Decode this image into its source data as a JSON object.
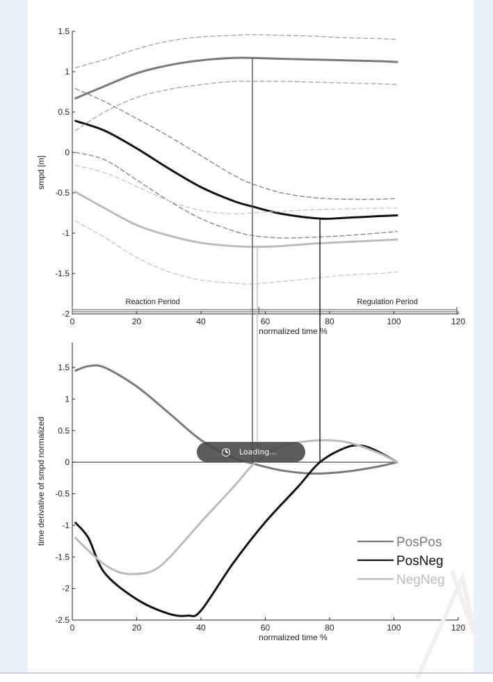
{
  "chart_data": [
    {
      "type": "line",
      "xlabel": "normalized time %",
      "ylabel": "smpd [m]",
      "xlim": [
        0,
        120
      ],
      "ylim": [
        -2,
        1.5
      ],
      "xticks": [
        0,
        20,
        40,
        60,
        80,
        100,
        120
      ],
      "yticks": [
        1.5,
        1,
        0.5,
        0,
        -0.5,
        -1,
        -1.5,
        -2
      ],
      "ytick_labels": [
        "1.5",
        "1",
        "0.5",
        "0",
        "-0.5",
        "-1",
        "-1.5",
        "-2"
      ],
      "xtick_labels": [
        "0",
        "20",
        "40",
        "60",
        "80",
        "100",
        "120"
      ],
      "period_labels": [
        "Reaction Period",
        "Regulation Period"
      ],
      "series": [
        {
          "color": "#7a7a7a",
          "style": "solid",
          "x": [
            1,
            10,
            20,
            30,
            40,
            50,
            56,
            65,
            75,
            85,
            95,
            101
          ],
          "y": [
            0.67,
            0.82,
            0.98,
            1.08,
            1.14,
            1.17,
            1.17,
            1.16,
            1.15,
            1.14,
            1.13,
            1.12
          ]
        },
        {
          "color": "#111111",
          "style": "solid",
          "x": [
            1,
            10,
            20,
            30,
            40,
            50,
            56,
            65,
            77,
            85,
            95,
            101
          ],
          "y": [
            0.39,
            0.27,
            0.05,
            -0.2,
            -0.43,
            -0.6,
            -0.67,
            -0.76,
            -0.82,
            -0.81,
            -0.79,
            -0.78
          ]
        },
        {
          "color": "#bbbbbb",
          "style": "solid",
          "x": [
            1,
            10,
            20,
            30,
            40,
            50,
            57,
            65,
            75,
            85,
            95,
            101
          ],
          "y": [
            -0.49,
            -0.69,
            -0.9,
            -1.03,
            -1.12,
            -1.16,
            -1.17,
            -1.16,
            -1.13,
            -1.11,
            -1.09,
            -1.08
          ]
        },
        {
          "color": "#a8a8a8",
          "style": "dashed",
          "x": [
            1,
            10,
            20,
            30,
            40,
            50,
            56,
            65,
            75,
            85,
            95,
            101
          ],
          "y": [
            1.05,
            1.15,
            1.28,
            1.38,
            1.43,
            1.45,
            1.46,
            1.45,
            1.44,
            1.42,
            1.41,
            1.4
          ]
        },
        {
          "color": "#a8a8a8",
          "style": "dashed",
          "x": [
            1,
            10,
            20,
            30,
            40,
            50,
            56,
            65,
            75,
            85,
            95,
            101
          ],
          "y": [
            0.27,
            0.5,
            0.68,
            0.78,
            0.84,
            0.88,
            0.88,
            0.88,
            0.87,
            0.86,
            0.85,
            0.84
          ]
        },
        {
          "color": "#888888",
          "style": "dashed",
          "x": [
            1,
            10,
            20,
            30,
            40,
            50,
            56,
            65,
            75,
            85,
            95,
            101
          ],
          "y": [
            0.79,
            0.63,
            0.42,
            0.2,
            -0.04,
            -0.28,
            -0.39,
            -0.5,
            -0.56,
            -0.58,
            -0.58,
            -0.57
          ]
        },
        {
          "color": "#888888",
          "style": "dashed",
          "x": [
            1,
            10,
            20,
            30,
            40,
            50,
            56,
            65,
            75,
            85,
            95,
            101
          ],
          "y": [
            0.0,
            -0.09,
            -0.34,
            -0.6,
            -0.82,
            -0.97,
            -1.03,
            -1.06,
            -1.05,
            -1.03,
            -1.0,
            -0.98
          ]
        },
        {
          "color": "#c8c8c8",
          "style": "dashed",
          "x": [
            1,
            10,
            20,
            30,
            40,
            50,
            56,
            65,
            75,
            85,
            95,
            101
          ],
          "y": [
            -0.16,
            -0.25,
            -0.42,
            -0.6,
            -0.72,
            -0.76,
            -0.75,
            -0.73,
            -0.71,
            -0.7,
            -0.69,
            -0.69
          ]
        },
        {
          "color": "#c8c8c8",
          "style": "dashed",
          "x": [
            1,
            10,
            20,
            30,
            40,
            50,
            56,
            65,
            75,
            85,
            95,
            101
          ],
          "y": [
            -0.85,
            -1.05,
            -1.3,
            -1.48,
            -1.58,
            -1.62,
            -1.63,
            -1.6,
            -1.56,
            -1.52,
            -1.5,
            -1.48
          ]
        }
      ],
      "markers": [
        {
          "x": 56,
          "color": "#555555",
          "from": 1.17,
          "to_panel2": true
        },
        {
          "x": 57.5,
          "color": "#bbbbbb",
          "from": -1.17,
          "to_panel2": true
        },
        {
          "x": 77,
          "color": "#111111",
          "from": -0.82,
          "to_panel2": true
        }
      ]
    },
    {
      "type": "line",
      "xlabel": "normalized time %",
      "ylabel": "time derivative of smpd normalized",
      "xlim": [
        0,
        120
      ],
      "ylim": [
        -2.5,
        1.9
      ],
      "xticks": [
        0,
        20,
        40,
        60,
        80,
        100,
        120
      ],
      "yticks": [
        1.5,
        1,
        0.5,
        0,
        -0.5,
        -1,
        -1.5,
        -2,
        -2.5
      ],
      "ytick_labels": [
        "1.5",
        "1",
        "0.5",
        "0",
        "-0.5",
        "-1",
        "-1.5",
        "-2",
        "-2.5"
      ],
      "xtick_labels": [
        "0",
        "20",
        "40",
        "60",
        "80",
        "100",
        "120"
      ],
      "legend": [
        "PosPos",
        "PosNeg",
        "NegNeg"
      ],
      "legend_position": "bottom-right",
      "series": [
        {
          "name": "PosPos",
          "color": "#7a7a7a",
          "x": [
            1,
            5,
            10,
            20,
            30,
            40,
            50,
            56,
            65,
            75,
            85,
            95,
            101
          ],
          "y": [
            1.45,
            1.52,
            1.5,
            1.2,
            0.78,
            0.35,
            0.07,
            -0.02,
            -0.13,
            -0.18,
            -0.15,
            -0.07,
            0.0
          ]
        },
        {
          "name": "PosNeg",
          "color": "#111111",
          "x": [
            1,
            5,
            10,
            20,
            30,
            36,
            40,
            50,
            60,
            70,
            77,
            85,
            90,
            95,
            101
          ],
          "y": [
            -0.96,
            -1.2,
            -1.75,
            -2.17,
            -2.4,
            -2.43,
            -2.35,
            -1.6,
            -0.95,
            -0.4,
            0.0,
            0.23,
            0.26,
            0.17,
            0.0
          ]
        },
        {
          "name": "NegNeg",
          "color": "#bbbbbb",
          "x": [
            1,
            5,
            10,
            15,
            20,
            25,
            30,
            40,
            50,
            57,
            65,
            75,
            85,
            95,
            101
          ],
          "y": [
            -1.2,
            -1.4,
            -1.62,
            -1.75,
            -1.77,
            -1.72,
            -1.52,
            -0.95,
            -0.4,
            0.0,
            0.25,
            0.34,
            0.32,
            0.15,
            0.0
          ]
        }
      ]
    }
  ],
  "overlay": {
    "loading_text": "Loading...",
    "icon": "clock-icon"
  }
}
